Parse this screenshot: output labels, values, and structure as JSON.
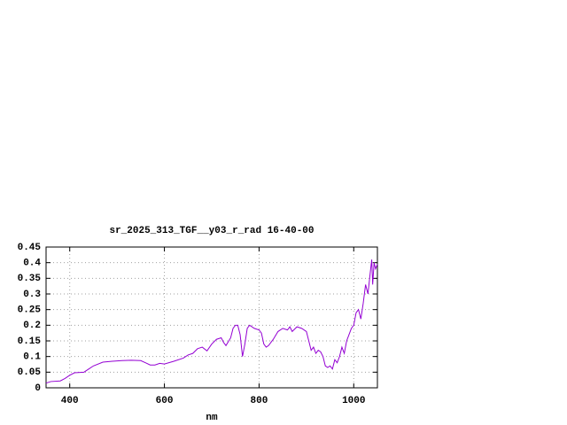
{
  "chart_data": {
    "type": "line",
    "title": "sr_2025_313_TGF__y03_r_rad 16-40-00",
    "x_label": "nm",
    "x": [
      350,
      360,
      380,
      390,
      400,
      410,
      430,
      440,
      450,
      470,
      490,
      510,
      530,
      550,
      560,
      570,
      580,
      590,
      600,
      620,
      640,
      650,
      660,
      670,
      680,
      690,
      700,
      710,
      720,
      725,
      730,
      740,
      745,
      750,
      755,
      760,
      765,
      770,
      775,
      780,
      790,
      800,
      805,
      810,
      815,
      820,
      830,
      840,
      850,
      860,
      865,
      870,
      880,
      890,
      900,
      905,
      910,
      915,
      920,
      925,
      930,
      935,
      940,
      945,
      950,
      955,
      960,
      965,
      970,
      975,
      980,
      985,
      990,
      995,
      1000,
      1005,
      1010,
      1015,
      1020,
      1025,
      1030,
      1035,
      1038,
      1040,
      1043,
      1046,
      1050
    ],
    "series": [
      {
        "color": "#9400d3",
        "values": [
          0.015,
          0.02,
          0.022,
          0.03,
          0.04,
          0.048,
          0.05,
          0.06,
          0.07,
          0.082,
          0.085,
          0.087,
          0.088,
          0.087,
          0.08,
          0.073,
          0.073,
          0.078,
          0.076,
          0.085,
          0.095,
          0.105,
          0.11,
          0.125,
          0.13,
          0.118,
          0.14,
          0.155,
          0.16,
          0.145,
          0.135,
          0.16,
          0.19,
          0.2,
          0.2,
          0.17,
          0.1,
          0.14,
          0.19,
          0.2,
          0.19,
          0.185,
          0.175,
          0.14,
          0.13,
          0.135,
          0.155,
          0.18,
          0.19,
          0.185,
          0.195,
          0.18,
          0.195,
          0.19,
          0.18,
          0.15,
          0.12,
          0.13,
          0.11,
          0.12,
          0.115,
          0.1,
          0.07,
          0.065,
          0.07,
          0.06,
          0.09,
          0.08,
          0.1,
          0.13,
          0.11,
          0.15,
          0.17,
          0.19,
          0.2,
          0.24,
          0.25,
          0.22,
          0.27,
          0.33,
          0.3,
          0.37,
          0.41,
          0.33,
          0.4,
          0.38,
          0.395
        ]
      }
    ],
    "xlim": [
      350,
      1050
    ],
    "ylim": [
      0,
      0.45
    ],
    "xticks": [
      400,
      600,
      800,
      1000
    ],
    "yticks": [
      0,
      0.05,
      0.1,
      0.15,
      0.2,
      0.25,
      0.3,
      0.35,
      0.4,
      0.45
    ],
    "grid": true
  }
}
